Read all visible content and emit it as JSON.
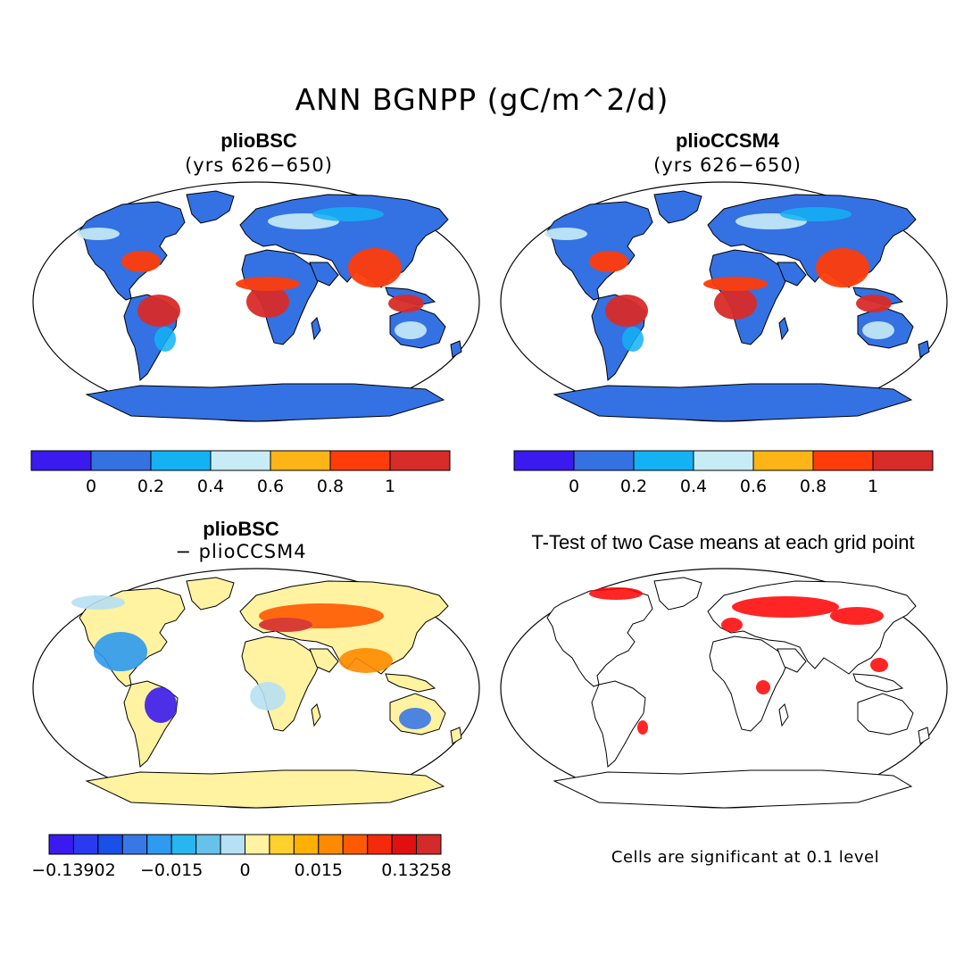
{
  "figure": {
    "title": "ANN BGNPP (gC/m^2/d)",
    "note": "Cells are significant at 0.1 level"
  },
  "panels": [
    {
      "id": "case1",
      "title": "plioBSC",
      "subtitle": "(yrs 626−650)"
    },
    {
      "id": "case2",
      "title": "plioCCSM4",
      "subtitle": "(yrs 626−650)"
    },
    {
      "id": "diff",
      "title": "plioBSC",
      "subtitle": "− plioCCSM4"
    },
    {
      "id": "ttest",
      "title": "T-Test of two Case means at each grid point"
    }
  ],
  "colorbars": {
    "absolute": {
      "colors": [
        "#3a1aee",
        "#3471e3",
        "#14b2f4",
        "#c8ecf6",
        "#fdb417",
        "#ff3c0a",
        "#d82c2a"
      ],
      "labels": [
        "0",
        "0.2",
        "0.4",
        "0.6",
        "0.8",
        "1"
      ]
    },
    "difference": {
      "colors": [
        "#3a1aee",
        "#2a3af0",
        "#1a4fe8",
        "#3878e6",
        "#2e9af0",
        "#28b6f0",
        "#66c2ea",
        "#b6e0f3",
        "#fff2a0",
        "#ffd02e",
        "#ffb000",
        "#ff8a00",
        "#ff5a00",
        "#f42a0a",
        "#e01010",
        "#d42a2a"
      ],
      "labels": [
        "−0.13902",
        "−0.015",
        "0",
        "0.015",
        "0.13258"
      ]
    }
  },
  "legend_colors": {
    "significant": "#ff0000",
    "coast": "#000000"
  }
}
